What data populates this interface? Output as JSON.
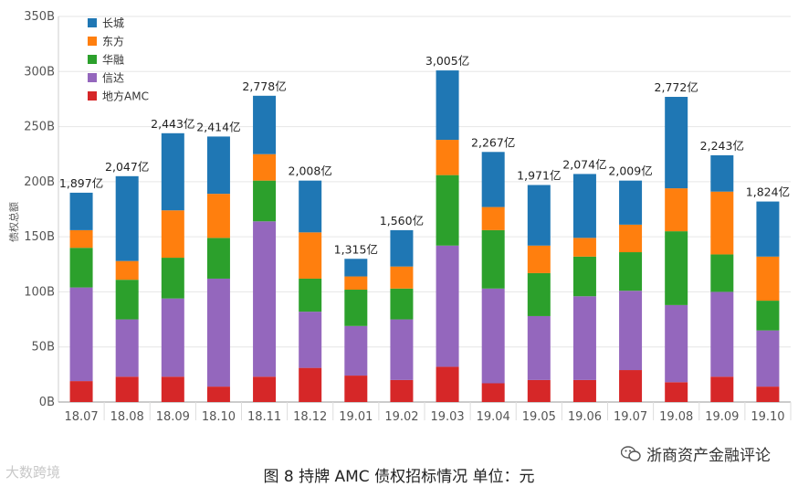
{
  "chart_data": {
    "type": "bar",
    "stacked": true,
    "ylabel": "债权总额",
    "ylim": [
      0,
      350
    ],
    "yticks": [
      "0B",
      "50B",
      "100B",
      "150B",
      "200B",
      "250B",
      "300B",
      "350B"
    ],
    "categories": [
      "18.07",
      "18.08",
      "18.09",
      "18.10",
      "18.11",
      "18.12",
      "19.01",
      "19.02",
      "19.03",
      "19.04",
      "19.05",
      "19.06",
      "19.07",
      "19.08",
      "19.09",
      "19.10"
    ],
    "totals_label": [
      "1,897亿",
      "2,047亿",
      "2,443亿",
      "2,414亿",
      "2,778亿",
      "2,008亿",
      "1,315亿",
      "1,560亿",
      "3,005亿",
      "2,267亿",
      "1,971亿",
      "2,074亿",
      "2,009亿",
      "2,772亿",
      "2,243亿",
      "1,824亿"
    ],
    "series": [
      {
        "name": "地方AMC",
        "color": "#d62728",
        "values": [
          19,
          23,
          23,
          14,
          23,
          31,
          24,
          20,
          32,
          17,
          20,
          20,
          29,
          18,
          23,
          14
        ]
      },
      {
        "name": "信达",
        "color": "#9467bd",
        "values": [
          85,
          52,
          71,
          98,
          141,
          51,
          45,
          55,
          110,
          86,
          58,
          76,
          72,
          70,
          77,
          51
        ]
      },
      {
        "name": "华融",
        "color": "#2ca02c",
        "values": [
          36,
          36,
          37,
          37,
          37,
          30,
          33,
          28,
          64,
          53,
          39,
          36,
          35,
          67,
          34,
          27
        ]
      },
      {
        "name": "东方",
        "color": "#ff7f0e",
        "values": [
          16,
          17,
          43,
          40,
          24,
          42,
          12,
          20,
          32,
          21,
          25,
          17,
          25,
          39,
          57,
          40
        ]
      },
      {
        "name": "长城",
        "color": "#1f77b4",
        "values": [
          34,
          77,
          70,
          52,
          53,
          47,
          16,
          33,
          63,
          50,
          55,
          58,
          40,
          83,
          33,
          50
        ]
      }
    ],
    "legend_position": "top-left",
    "legend_order": [
      "长城",
      "东方",
      "华融",
      "信达",
      "地方AMC"
    ]
  },
  "caption": "图 8  持牌 AMC 债权招标情况  单位：元",
  "watermark_left": "大数跨境",
  "watermark_right": "浙商资产金融评论"
}
